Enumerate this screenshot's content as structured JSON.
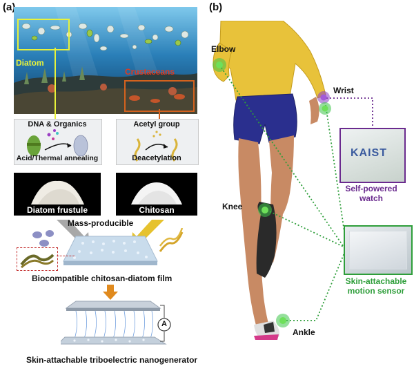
{
  "panel_a": {
    "letter": "(a)",
    "ocean": {
      "diatom_label": "Diatom",
      "crustaceans_label": "Crustaceans"
    },
    "left_process": {
      "top_label": "DNA & Organics",
      "bottom_label": "Acid/Thermal annealing",
      "product_label": "Diatom frustule"
    },
    "right_process": {
      "top_label": "Acetyl group",
      "bottom_label": "Deacetylation",
      "product_label": "Chitosan"
    },
    "mass_label": "Mass-producible",
    "film_label": "Biocompatible chitosan-diatom film",
    "meter_symbol": "A",
    "teng_label": "Skin-attachable triboelectric nanogenerator"
  },
  "panel_b": {
    "letter": "(b)",
    "elbow_label": "Elbow",
    "wrist_label": "Wrist",
    "knee_label": "Knee",
    "ankle_label": "Ankle",
    "watch": {
      "brand": "KAIST",
      "caption_line1": "Self-powered",
      "caption_line2": "watch"
    },
    "sensor": {
      "caption_line1": "Skin-attachable",
      "caption_line2": "motion sensor"
    }
  },
  "colors": {
    "diatom_box": "#e8f23a",
    "crustacean_box": "#d4621e",
    "crustacean_text": "#e23a1e",
    "sensor_green": "#2e9e3a",
    "watch_purple": "#6a2a8e",
    "arrow_orange": "#e08a1e"
  }
}
